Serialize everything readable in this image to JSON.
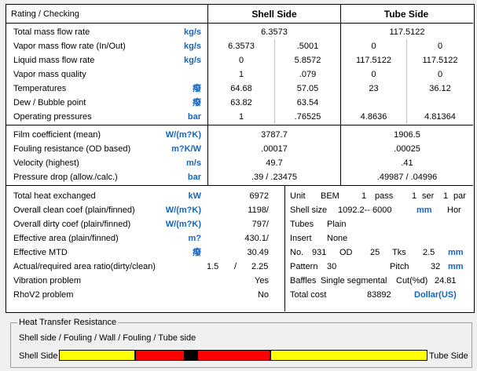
{
  "header": {
    "title": "Rating / Checking",
    "shell": "Shell Side",
    "tube": "Tube Side"
  },
  "section1": [
    {
      "label": "Total mass flow rate",
      "unit": "kg/s",
      "shell": "6.3573",
      "tube": "117.5122"
    },
    {
      "label": "Vapor mass flow rate  (In/Out)",
      "unit": "kg/s",
      "shell_in": "6.3573",
      "shell_out": ".5001",
      "tube_in": "0",
      "tube_out": "0"
    },
    {
      "label": "Liquid mass flow rate",
      "unit": "kg/s",
      "shell_in": "0",
      "shell_out": "5.8572",
      "tube_in": "117.5122",
      "tube_out": "117.5122"
    },
    {
      "label": "Vapor mass quality",
      "unit": "",
      "shell_in": "1",
      "shell_out": ".079",
      "tube_in": "0",
      "tube_out": "0"
    },
    {
      "label": "Temperatures",
      "unit": "癈",
      "shell_in": "64.68",
      "shell_out": "57.05",
      "tube_in": "23",
      "tube_out": "36.12"
    },
    {
      "label": "Dew / Bubble point",
      "unit": "癈",
      "shell_in": "63.82",
      "shell_out": "63.54",
      "tube_in": "",
      "tube_out": ""
    },
    {
      "label": "Operating pressures",
      "unit": "bar",
      "shell_in": "1",
      "shell_out": ".76525",
      "tube_in": "4.8636",
      "tube_out": "4.81364"
    }
  ],
  "section2": [
    {
      "label": "Film coefficient (mean)",
      "unit": "W/(m?K)",
      "shell": "3787.7",
      "tube": "1906.5"
    },
    {
      "label": "Fouling resistance (OD based)",
      "unit": "m?K/W",
      "shell": ".00017",
      "tube": ".00025"
    },
    {
      "label": "Velocity (highest)",
      "unit": "m/s",
      "shell": "49.7",
      "tube": ".41"
    },
    {
      "label": "Pressure drop (allow./calc.)",
      "unit": "bar",
      "shell": ".39  /  .23475",
      "tube": ".49987  /  .04996"
    }
  ],
  "section3_left": [
    {
      "label": "Total heat exchanged",
      "unit": "kW",
      "value": "6972"
    },
    {
      "label": "Overall clean coef (plain/finned)",
      "unit": "W/(m?K)",
      "value": "1198/"
    },
    {
      "label": "Overall dirty coef (plain/finned)",
      "unit": "W/(m?K)",
      "value": "797/"
    },
    {
      "label": "Effective area (plain/finned)",
      "unit": "m?",
      "value": "430.1/"
    },
    {
      "label": "Effective MTD",
      "unit": "癈",
      "value": "30.49"
    },
    {
      "label": "Actual/required area ratio(dirty/clean)",
      "unit": "",
      "value_a": "1.5",
      "value_sep": "/",
      "value_b": "2.25"
    },
    {
      "label": "Vibration problem",
      "unit": "",
      "value": "Yes"
    },
    {
      "label": "RhoV2 problem",
      "unit": "",
      "value": "No"
    }
  ],
  "section3_right": {
    "unit": {
      "label": "Unit",
      "type": "BEM",
      "n1": "1",
      "pass": "pass",
      "n2": "1",
      "ser": "ser",
      "n3": "1",
      "par": "par"
    },
    "shell_size": {
      "label": "Shell size",
      "value": "1092.2--  6000",
      "unit": "mm",
      "orient": "Hor"
    },
    "tubes": {
      "label": "Tubes",
      "value": "Plain"
    },
    "insert": {
      "label": "Insert",
      "value": "None"
    },
    "no": {
      "label": "No.",
      "value": "931",
      "od_label": "OD",
      "od": "25",
      "tks_label": "Tks",
      "tks": "2.5",
      "unit": "mm"
    },
    "pattern": {
      "label": "Pattern",
      "value": "30",
      "pitch_label": "Pitch",
      "pitch": "32",
      "unit": "mm"
    },
    "baffles": {
      "label": "Baffles",
      "value": "Single segmental",
      "cut_label": "Cut(%d)",
      "cut": "24.81"
    },
    "cost": {
      "label": "Total cost",
      "value": "83892",
      "unit": "Dollar(US)"
    }
  },
  "resistance": {
    "group_title": "Heat Transfer Resistance",
    "subtitle": "Shell side / Fouling / Wall / Fouling / Tube side",
    "left_label": "Shell Side",
    "right_label": "Tube Side",
    "segments": [
      {
        "name": "shell",
        "fraction": 0.207,
        "color": "#ffff00"
      },
      {
        "name": "fouling-shell",
        "fraction": 0.134,
        "color": "#ff0000"
      },
      {
        "name": "wall",
        "fraction": 0.034,
        "color": "#000000"
      },
      {
        "name": "fouling-tube",
        "fraction": 0.198,
        "color": "#ff0000"
      },
      {
        "name": "tube",
        "fraction": 0.427,
        "color": "#ffff00"
      }
    ]
  },
  "colors": {
    "unit": "#1565c0"
  }
}
